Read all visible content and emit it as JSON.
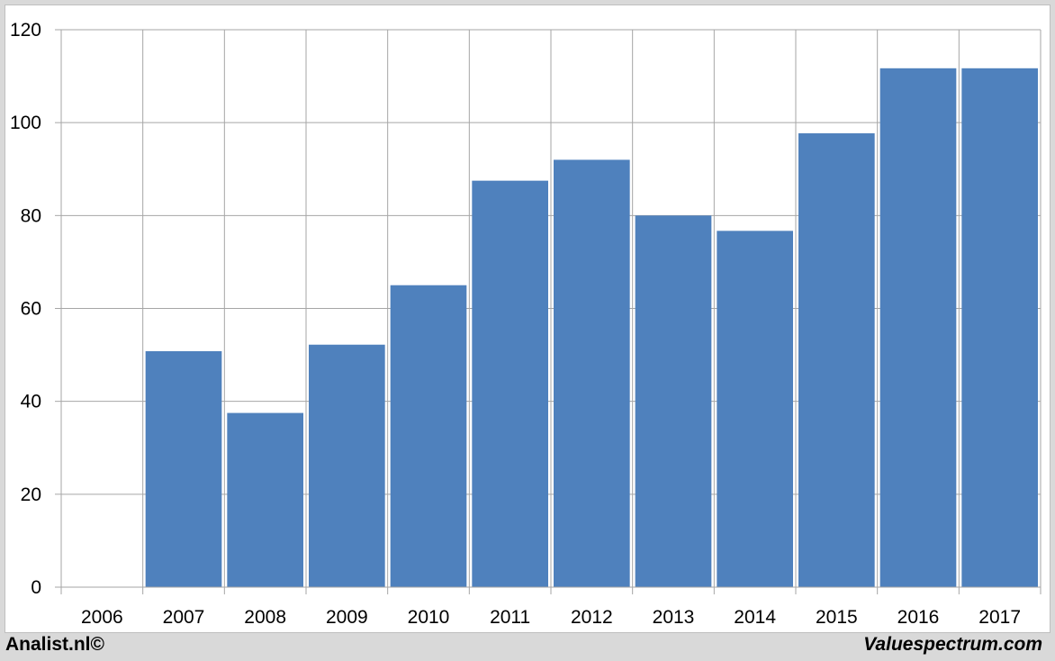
{
  "chart_data": {
    "type": "bar",
    "categories": [
      "2006",
      "2007",
      "2008",
      "2009",
      "2010",
      "2011",
      "2012",
      "2013",
      "2014",
      "2015",
      "2016",
      "2017"
    ],
    "values": [
      0,
      50.8,
      37.5,
      52.2,
      65.0,
      87.5,
      92.0,
      80.0,
      76.7,
      97.7,
      111.7,
      111.7
    ],
    "ylim": [
      0,
      120
    ],
    "yticks": [
      0,
      20,
      40,
      60,
      80,
      100,
      120
    ],
    "grid": true,
    "bar_color": "#4f81bd",
    "grid_color": "#a6a6a6"
  },
  "footer": {
    "left": "Analist.nl©",
    "right": "Valuespectrum.com"
  }
}
